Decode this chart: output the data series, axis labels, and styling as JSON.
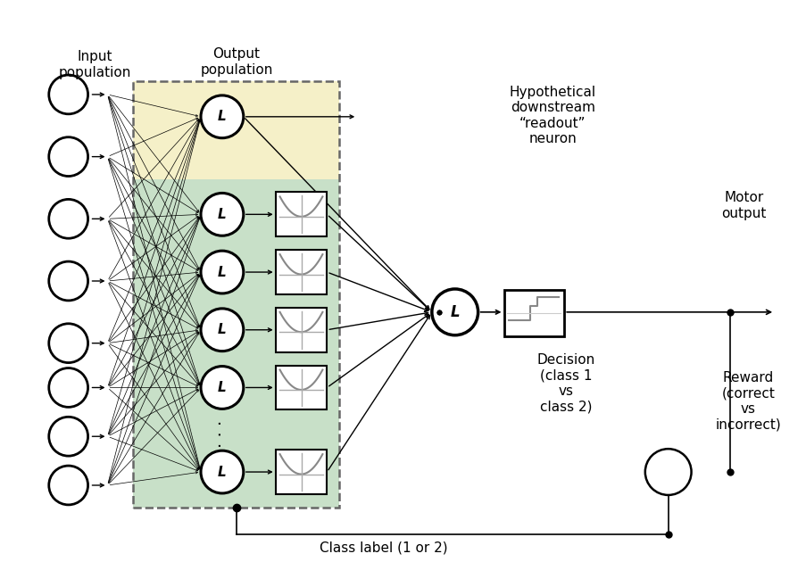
{
  "fig_w": 9.04,
  "fig_h": 6.3,
  "bg_color": "#ffffff",
  "color_yellow": "#f5f0c8",
  "color_green": "#c8e0c8",
  "color_dashed": "#666666",
  "input_pop_label": "Input\npopulation",
  "output_pop_label": "Output\npopulation",
  "hypothetical_label": "Hypothetical\ndownstream\n“readout”\nneuron",
  "motor_label": "Motor\noutput",
  "decision_label": "Decision\n(class 1\nvs\nclass 2)",
  "reward_label": "Reward\n(correct\nvs\nincorrect)",
  "class_label": "Class label (1 or 2)"
}
